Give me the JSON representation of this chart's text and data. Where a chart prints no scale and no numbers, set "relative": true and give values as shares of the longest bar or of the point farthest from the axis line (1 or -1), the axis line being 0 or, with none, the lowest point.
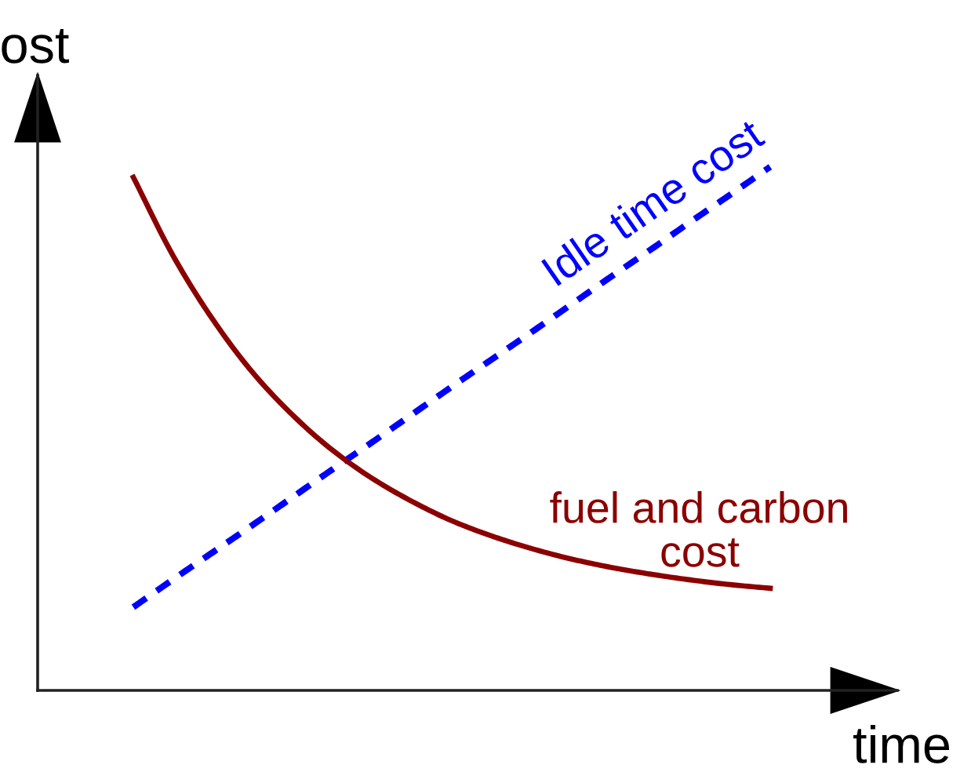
{
  "chart_data": {
    "type": "line",
    "relative": true,
    "xlabel": "time",
    "ylabel": "ost",
    "tick_labels": false,
    "categories": [
      null,
      null,
      null,
      null,
      null,
      null,
      null,
      null,
      null,
      null,
      null,
      null,
      null,
      null,
      null,
      null,
      null
    ],
    "series": [
      {
        "name": "Idle time cost",
        "color": "#0000ff",
        "line_style": "dashed",
        "values": [
          0.159,
          0.212,
          0.264,
          0.316,
          0.369,
          0.422,
          0.474,
          0.527,
          0.58,
          0.632,
          0.684,
          0.737,
          0.79,
          0.842,
          0.895,
          0.947,
          1.0
        ]
      },
      {
        "name": "fuel and carbon\ncost",
        "color": "#8b0000",
        "line_style": "solid",
        "values": [
          0.98,
          0.83,
          0.708,
          0.607,
          0.526,
          0.459,
          0.405,
          0.361,
          0.324,
          0.295,
          0.271,
          0.251,
          0.235,
          0.222,
          0.211,
          0.202,
          0.195
        ]
      }
    ]
  }
}
